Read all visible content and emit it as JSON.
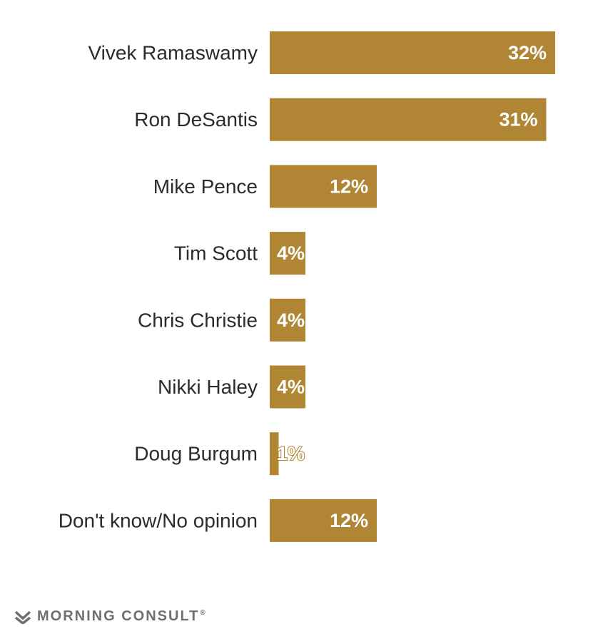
{
  "chart_data": {
    "type": "bar",
    "orientation": "horizontal",
    "categories": [
      "Vivek Ramaswamy",
      "Ron DeSantis",
      "Mike Pence",
      "Tim Scott",
      "Chris Christie",
      "Nikki Haley",
      "Doug Burgum",
      "Don't know/No opinion"
    ],
    "values": [
      32,
      31,
      12,
      4,
      4,
      4,
      1,
      12
    ],
    "value_labels": [
      "32%",
      "31%",
      "12%",
      "4%",
      "4%",
      "4%",
      "1%",
      "12%"
    ],
    "unit": "%",
    "xlim": [
      0,
      32
    ],
    "grid": false,
    "legend": "none",
    "colors": {
      "bar": "#b08534",
      "value_text": "#ffffff",
      "category_text": "#2b2b2b"
    }
  },
  "brand": {
    "name": "MORNING CONSULT",
    "reg_mark": "®",
    "logo_icon": "morning-consult-logo-icon",
    "color": "#6f6f6f"
  }
}
